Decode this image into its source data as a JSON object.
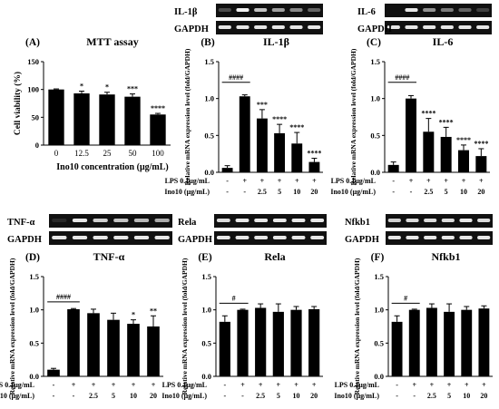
{
  "colors": {
    "bar": "#000000",
    "gel_bg": "#111111",
    "band": "#ffffff",
    "axis": "#000000"
  },
  "gels": [
    {
      "id": "il1b-gel",
      "labels": [
        "IL-1β",
        "GAPDH"
      ],
      "rows": [
        [
          0.25,
          0.95,
          0.75,
          0.6,
          0.5,
          0.35
        ],
        [
          0.9,
          0.9,
          0.9,
          0.9,
          0.9,
          0.9
        ]
      ]
    },
    {
      "id": "il6-gel",
      "labels": [
        "IL-6",
        "GAPDH"
      ],
      "rows": [
        [
          0.0,
          0.9,
          0.55,
          0.45,
          0.35,
          0.2
        ],
        [
          0.9,
          0.9,
          0.9,
          0.9,
          0.9,
          0.9
        ]
      ]
    },
    {
      "id": "tnf-gel",
      "labels": [
        "TNF-α",
        "GAPDH"
      ],
      "rows": [
        [
          0.1,
          0.9,
          0.8,
          0.75,
          0.7,
          0.65
        ],
        [
          0.9,
          0.9,
          0.9,
          0.9,
          0.9,
          0.9
        ]
      ]
    },
    {
      "id": "rela-gel",
      "labels": [
        "Rela",
        "GAPDH"
      ],
      "rows": [
        [
          0.85,
          0.9,
          0.9,
          0.9,
          0.9,
          0.9
        ],
        [
          0.9,
          0.9,
          0.9,
          0.9,
          0.9,
          0.9
        ]
      ]
    },
    {
      "id": "nfkb1-gel",
      "labels": [
        "Nfkb1",
        "GAPDH"
      ],
      "rows": [
        [
          0.8,
          0.85,
          0.85,
          0.85,
          0.9,
          0.85
        ],
        [
          0.9,
          0.9,
          0.9,
          0.9,
          0.9,
          0.9
        ]
      ]
    }
  ],
  "treatment_rows": {
    "lps_label": "LPS 0.1μg/mL",
    "ino_label": "Ino10 (μg/mL)",
    "lps_values": [
      "-",
      "+",
      "+",
      "+",
      "+",
      "+"
    ],
    "ino_values": [
      "-",
      "-",
      "2.5",
      "5",
      "10",
      "20"
    ]
  },
  "chart_data": [
    {
      "panel": "(A)",
      "title": "MTT assay",
      "type": "bar",
      "categories": [
        "0",
        "12.5",
        "25",
        "50",
        "100"
      ],
      "values": [
        100,
        93,
        91,
        87,
        55
      ],
      "errors": [
        1,
        4,
        4,
        5,
        2
      ],
      "significance": [
        "",
        "*",
        "*",
        "***",
        "****"
      ],
      "xlabel": "Ino10 concentration (μg/mL)",
      "ylabel": "Cell viability (%)",
      "ylim": [
        0,
        150
      ],
      "yticks": [
        0,
        50,
        100,
        150
      ]
    },
    {
      "panel": "(B)",
      "title": "IL-1β",
      "type": "bar",
      "categories": [
        "-/-",
        "+/-",
        "+/2.5",
        "+/5",
        "+/10",
        "+/20"
      ],
      "values": [
        0.06,
        1.03,
        0.73,
        0.53,
        0.39,
        0.14
      ],
      "errors": [
        0.03,
        0.02,
        0.12,
        0.12,
        0.15,
        0.05
      ],
      "significance": [
        "",
        "",
        "***",
        "****",
        "****",
        "****"
      ],
      "bracket": {
        "label": "####",
        "from": 0,
        "to": 1,
        "y": 1.22
      },
      "ylabel": "Relative mRNA expression level (fold/GAPDH)",
      "ylim": [
        0,
        1.5
      ],
      "yticks": [
        "0.0",
        "0.5",
        "1.0",
        "1.5"
      ]
    },
    {
      "panel": "(C)",
      "title": "IL-6",
      "type": "bar",
      "categories": [
        "-/-",
        "+/-",
        "+/2.5",
        "+/5",
        "+/10",
        "+/20"
      ],
      "values": [
        0.1,
        1.0,
        0.55,
        0.48,
        0.3,
        0.22
      ],
      "errors": [
        0.04,
        0.04,
        0.18,
        0.13,
        0.07,
        0.1
      ],
      "significance": [
        "",
        "",
        "****",
        "****",
        "****",
        "****"
      ],
      "bracket": {
        "label": "####",
        "from": 0,
        "to": 1,
        "y": 1.22
      },
      "ylabel": "Relative mRNA expression level (fold/GAPDH)",
      "ylim": [
        0,
        1.5
      ],
      "yticks": [
        "0.0",
        "0.5",
        "1.0",
        "1.5"
      ]
    },
    {
      "panel": "(D)",
      "title": "TNF-α",
      "type": "bar",
      "categories": [
        "-/-",
        "+/-",
        "+/2.5",
        "+/5",
        "+/10",
        "+/20"
      ],
      "values": [
        0.1,
        1.01,
        0.95,
        0.85,
        0.79,
        0.75
      ],
      "errors": [
        0.02,
        0.01,
        0.06,
        0.1,
        0.06,
        0.16
      ],
      "significance": [
        "",
        "",
        "",
        "",
        "*",
        "**"
      ],
      "bracket": {
        "label": "####",
        "from": 0,
        "to": 1,
        "y": 1.12
      },
      "ylabel": "Relative mRNA expression level (fold/GAPDH)",
      "ylim": [
        0,
        1.5
      ],
      "yticks": [
        "0.0",
        "0.5",
        "1.0",
        "1.5"
      ]
    },
    {
      "panel": "(E)",
      "title": "Rela",
      "type": "bar",
      "categories": [
        "-/-",
        "+/-",
        "+/2.5",
        "+/5",
        "+/10",
        "+/20"
      ],
      "values": [
        0.82,
        1.0,
        1.03,
        0.97,
        1.0,
        1.01
      ],
      "errors": [
        0.09,
        0.01,
        0.06,
        0.12,
        0.05,
        0.04
      ],
      "significance": [
        "",
        "",
        "",
        "",
        "",
        ""
      ],
      "bracket": {
        "label": "#",
        "from": 0,
        "to": 1,
        "y": 1.1
      },
      "ylabel": "Relative mRNA expression level (fold/GAPDH)",
      "ylim": [
        0,
        1.5
      ],
      "yticks": [
        "0.0",
        "0.5",
        "1.0",
        "1.5"
      ]
    },
    {
      "panel": "(F)",
      "title": "Nfkb1",
      "type": "bar",
      "categories": [
        "-/-",
        "+/-",
        "+/2.5",
        "+/5",
        "+/10",
        "+/20"
      ],
      "values": [
        0.82,
        1.0,
        1.03,
        0.97,
        1.0,
        1.02
      ],
      "errors": [
        0.09,
        0.01,
        0.06,
        0.12,
        0.05,
        0.04
      ],
      "significance": [
        "",
        "",
        "",
        "",
        "",
        ""
      ],
      "bracket": {
        "label": "#",
        "from": 0,
        "to": 1,
        "y": 1.1
      },
      "ylabel": "Relative mRNA expression level (fold/GAPDH)",
      "ylim": [
        0,
        1.5
      ],
      "yticks": [
        "0.0",
        "0.5",
        "1.0",
        "1.5"
      ]
    }
  ]
}
